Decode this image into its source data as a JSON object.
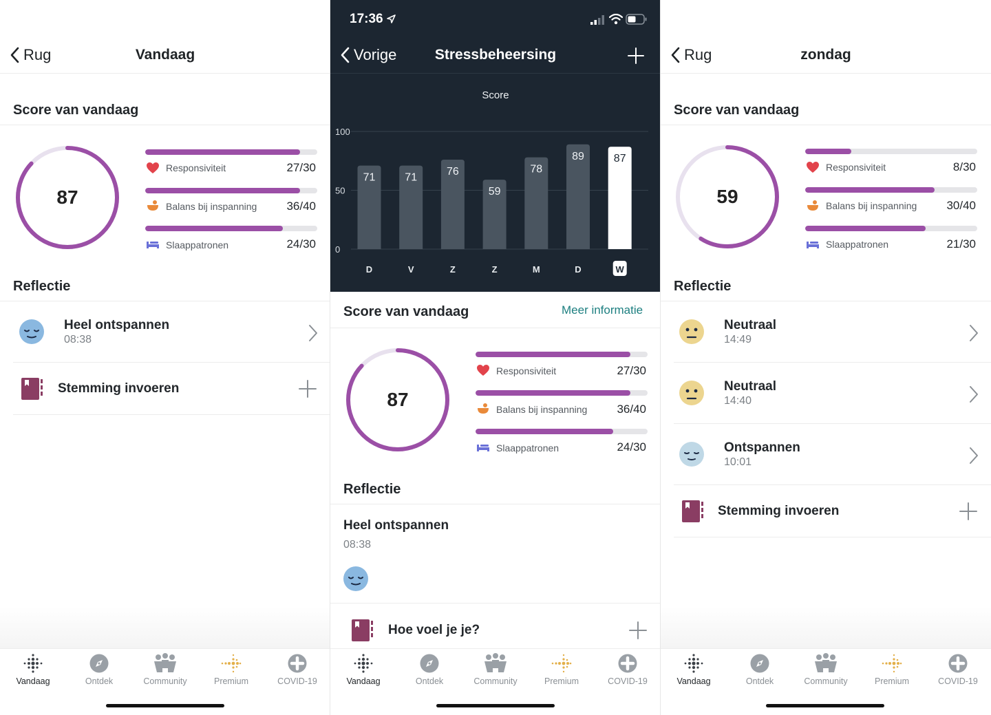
{
  "panel_left": {
    "back_label": "Rug",
    "title": "Vandaag",
    "score_section_title": "Score van vandaag",
    "score": "87",
    "score_fraction": 0.87,
    "metrics": [
      {
        "label": "Responsiviteit",
        "value": "27/30",
        "fraction": 0.9,
        "icon": "heart-icon"
      },
      {
        "label": "Balans bij inspanning",
        "value": "36/40",
        "fraction": 0.9,
        "icon": "exertion-icon"
      },
      {
        "label": "Slaappatronen",
        "value": "24/30",
        "fraction": 0.8,
        "icon": "bed-icon"
      }
    ],
    "reflection_title": "Reflectie",
    "reflections": [
      {
        "mood": "Heel ontspannen",
        "time": "08:38",
        "icon": "very-relaxed-face-icon"
      }
    ],
    "enter_mood_label": "Stemming invoeren"
  },
  "panel_middle": {
    "status_time": "17:36",
    "back_label": "Vorige",
    "title": "Stressbeheersing",
    "score_section_title": "Score van vandaag",
    "more_info_label": "Meer informatie",
    "score": "87",
    "score_fraction": 0.87,
    "metrics": [
      {
        "label": "Responsiviteit",
        "value": "27/30",
        "fraction": 0.9,
        "icon": "heart-icon"
      },
      {
        "label": "Balans bij inspanning",
        "value": "36/40",
        "fraction": 0.9,
        "icon": "exertion-icon"
      },
      {
        "label": "Slaappatronen",
        "value": "24/30",
        "fraction": 0.8,
        "icon": "bed-icon"
      }
    ],
    "reflection_title": "Reflectie",
    "reflection": {
      "mood": "Heel ontspannen",
      "time": "08:38",
      "icon": "very-relaxed-face-icon"
    },
    "how_do_you_feel_label": "Hoe voel je je?"
  },
  "panel_right": {
    "back_label": "Rug",
    "title": "zondag",
    "score_section_title": "Score van vandaag",
    "score": "59",
    "score_fraction": 0.59,
    "metrics": [
      {
        "label": "Responsiviteit",
        "value": "8/30",
        "fraction": 0.267,
        "icon": "heart-icon"
      },
      {
        "label": "Balans bij inspanning",
        "value": "30/40",
        "fraction": 0.75,
        "icon": "exertion-icon"
      },
      {
        "label": "Slaappatronen",
        "value": "21/30",
        "fraction": 0.7,
        "icon": "bed-icon"
      }
    ],
    "reflection_title": "Reflectie",
    "reflections": [
      {
        "mood": "Neutraal",
        "time": "14:49",
        "icon": "neutral-face-icon"
      },
      {
        "mood": "Neutraal",
        "time": "14:40",
        "icon": "neutral-face-icon"
      },
      {
        "mood": "Ontspannen",
        "time": "10:01",
        "icon": "relaxed-face-icon"
      }
    ],
    "enter_mood_label": "Stemming invoeren"
  },
  "tabs": [
    {
      "label": "Vandaag",
      "icon": "fitbit-dots-icon",
      "active": true
    },
    {
      "label": "Ontdek",
      "icon": "compass-icon",
      "active": false
    },
    {
      "label": "Community",
      "icon": "community-icon",
      "active": false
    },
    {
      "label": "Premium",
      "icon": "premium-dots-icon",
      "active": false
    },
    {
      "label": "COVID-19",
      "icon": "covid-plus-icon",
      "active": false
    }
  ],
  "colors": {
    "accent_purple": "#9b4fa6",
    "ring_track": "#e8e1ee",
    "dark_header": "#1c2631",
    "bar_dark": "#4a5560",
    "link_teal": "#1d7f80",
    "heart_red": "#e2434b",
    "exertion_orange": "#e98a3a",
    "bed_blue": "#6a71d8",
    "journal_plum": "#8a3d63"
  },
  "chart_data": {
    "type": "bar",
    "title": "Score",
    "categories": [
      "D",
      "V",
      "Z",
      "Z",
      "M",
      "D",
      "W"
    ],
    "values": [
      71,
      71,
      76,
      59,
      78,
      89,
      87
    ],
    "highlight_index": 6,
    "ylim": [
      0,
      100
    ],
    "yticks": [
      "100",
      "50",
      "0"
    ],
    "grid": true
  }
}
